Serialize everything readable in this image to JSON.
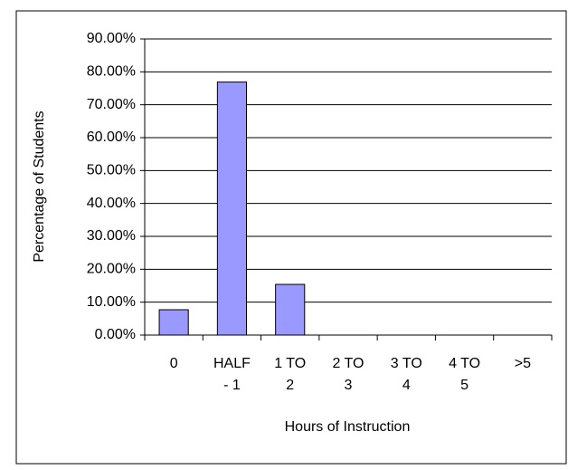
{
  "chart_data": {
    "type": "bar",
    "categories": [
      "0",
      "HALF - 1",
      "1 TO 2",
      "2 TO 3",
      "3 TO 4",
      "4 TO 5",
      ">5"
    ],
    "values": [
      7.7,
      76.9,
      15.4,
      0,
      0,
      0,
      0
    ],
    "color": "#9999ff",
    "xlabel": "Hours of Instruction",
    "ylabel": "Percentage of Students",
    "ylim": [
      0,
      90
    ],
    "yticks": [
      {
        "value": 0,
        "label": "0.00%"
      },
      {
        "value": 10,
        "label": "10.00%"
      },
      {
        "value": 20,
        "label": "20.00%"
      },
      {
        "value": 30,
        "label": "30.00%"
      },
      {
        "value": 40,
        "label": "40.00%"
      },
      {
        "value": 50,
        "label": "50.00%"
      },
      {
        "value": 60,
        "label": "60.00%"
      },
      {
        "value": 70,
        "label": "70.00%"
      },
      {
        "value": 80,
        "label": "80.00%"
      },
      {
        "value": 90,
        "label": "90.00%"
      }
    ],
    "grid": true
  }
}
